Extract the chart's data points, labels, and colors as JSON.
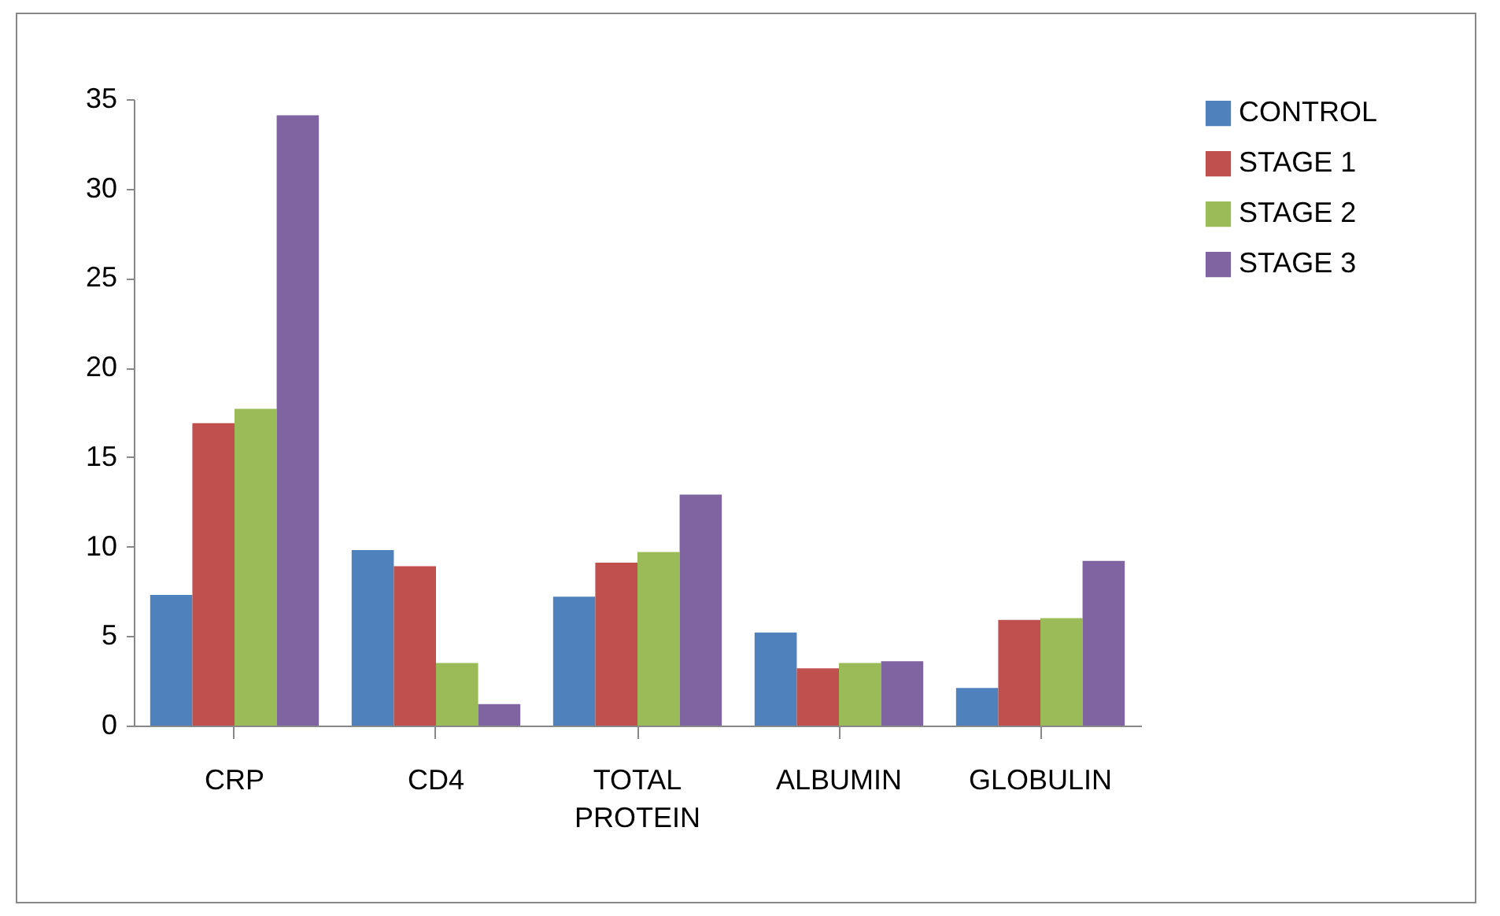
{
  "chart_data": {
    "type": "bar",
    "categories": [
      "CRP",
      "CD4",
      "TOTAL PROTEIN",
      "ALBUMIN",
      "GLOBULIN"
    ],
    "series": [
      {
        "name": "CONTROL",
        "color": "#4f81bd",
        "values": [
          7.3,
          9.8,
          7.2,
          5.2,
          2.1
        ]
      },
      {
        "name": "STAGE 1",
        "color": "#c0504d",
        "values": [
          16.9,
          8.9,
          9.1,
          3.2,
          5.9
        ]
      },
      {
        "name": "STAGE 2",
        "color": "#9bbb59",
        "values": [
          17.7,
          3.5,
          9.7,
          3.5,
          6.0
        ]
      },
      {
        "name": "STAGE 3",
        "color": "#8064a2",
        "values": [
          34.1,
          1.2,
          12.9,
          3.6,
          9.2
        ]
      }
    ],
    "ylim": [
      0,
      35
    ],
    "yticks": [
      0,
      5,
      10,
      15,
      20,
      25,
      30,
      35
    ],
    "grid": false,
    "legend": "right"
  }
}
